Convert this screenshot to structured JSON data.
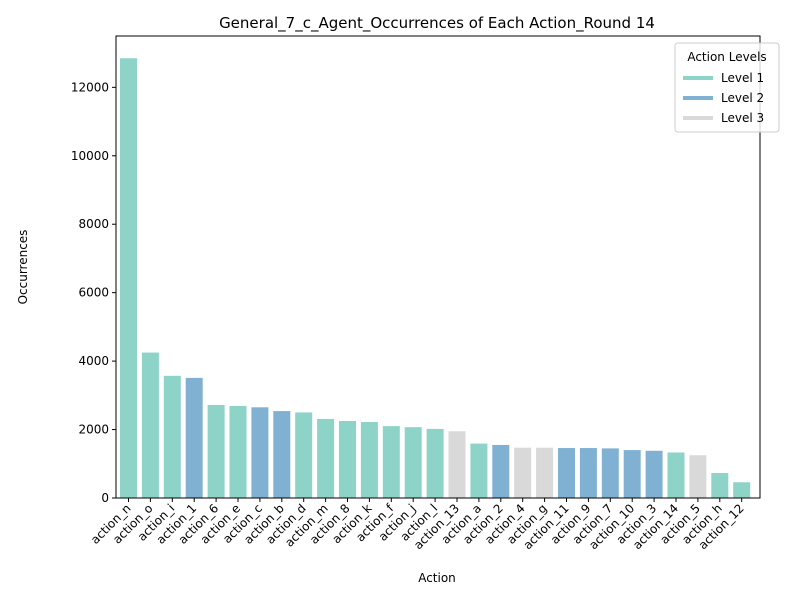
{
  "chart_data": {
    "type": "bar",
    "title": "General_7_c_Agent_Occurrences of Each Action_Round 14",
    "xlabel": "Action",
    "ylabel": "Occurrences",
    "ylim": [
      0,
      13500
    ],
    "yticks": [
      0,
      2000,
      4000,
      6000,
      8000,
      10000,
      12000
    ],
    "grid": false,
    "legend_position": "top-right",
    "legend_title": "Action Levels",
    "legend": [
      {
        "label": "Level 1",
        "level": 1,
        "color": "#8dd3c7"
      },
      {
        "label": "Level 2",
        "level": 2,
        "color": "#80b1d3"
      },
      {
        "label": "Level 3",
        "level": 3,
        "color": "#d9d9d9"
      }
    ],
    "categories": [
      "action_n",
      "action_o",
      "action_i",
      "action_1",
      "action_6",
      "action_e",
      "action_c",
      "action_b",
      "action_d",
      "action_m",
      "action_8",
      "action_k",
      "action_f",
      "action_j",
      "action_l",
      "action_13",
      "action_a",
      "action_2",
      "action_4",
      "action_g",
      "action_11",
      "action_9",
      "action_7",
      "action_10",
      "action_3",
      "action_14",
      "action_5",
      "action_h",
      "action_12"
    ],
    "values": [
      12850,
      4250,
      3570,
      3510,
      2720,
      2690,
      2650,
      2540,
      2500,
      2310,
      2250,
      2220,
      2100,
      2070,
      2020,
      1950,
      1590,
      1550,
      1470,
      1470,
      1460,
      1460,
      1450,
      1400,
      1380,
      1330,
      1250,
      730,
      460
    ],
    "levels": [
      1,
      1,
      1,
      2,
      1,
      1,
      2,
      2,
      1,
      1,
      1,
      1,
      1,
      1,
      1,
      3,
      1,
      2,
      3,
      3,
      2,
      2,
      2,
      2,
      2,
      1,
      3,
      1,
      1
    ]
  }
}
